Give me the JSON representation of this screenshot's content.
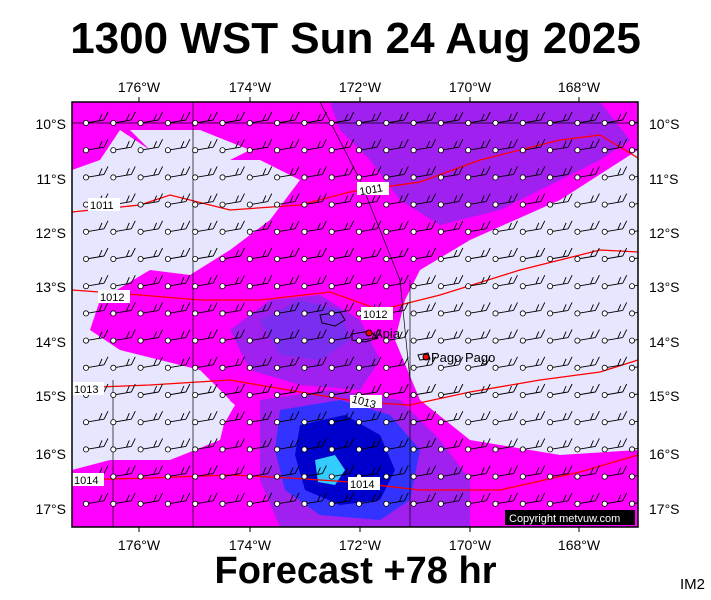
{
  "title": "1300 WST Sun 24 Aug 2025",
  "forecast_label": "Forecast +78 hr",
  "product_code": "IM2",
  "copyright": "Copyright metvuw.com",
  "longitude_labels": [
    "176°W",
    "174°W",
    "172°W",
    "170°W",
    "168°W"
  ],
  "latitude_labels": [
    "10°S",
    "11°S",
    "12°S",
    "13°S",
    "14°S",
    "15°S",
    "16°S",
    "17°S"
  ],
  "isobar_labels": [
    "1011",
    "1011",
    "1012",
    "1012",
    "1013",
    "1013",
    "1014",
    "1014"
  ],
  "places": [
    "Apia",
    "Pago Pago"
  ],
  "colors": {
    "land_border": "#000000",
    "isobar": "#ff0000",
    "rain_light": "#e6e6ff",
    "rain_magenta": "#ff00ff",
    "rain_violet": "#a020f0",
    "rain_blue": "#3333ff",
    "rain_deep_blue": "#0000cc",
    "rain_cyan": "#33ccff"
  },
  "map": {
    "lon_range": [
      -177.2,
      -166.8
    ],
    "lat_range": [
      -17.4,
      -9.6
    ]
  }
}
